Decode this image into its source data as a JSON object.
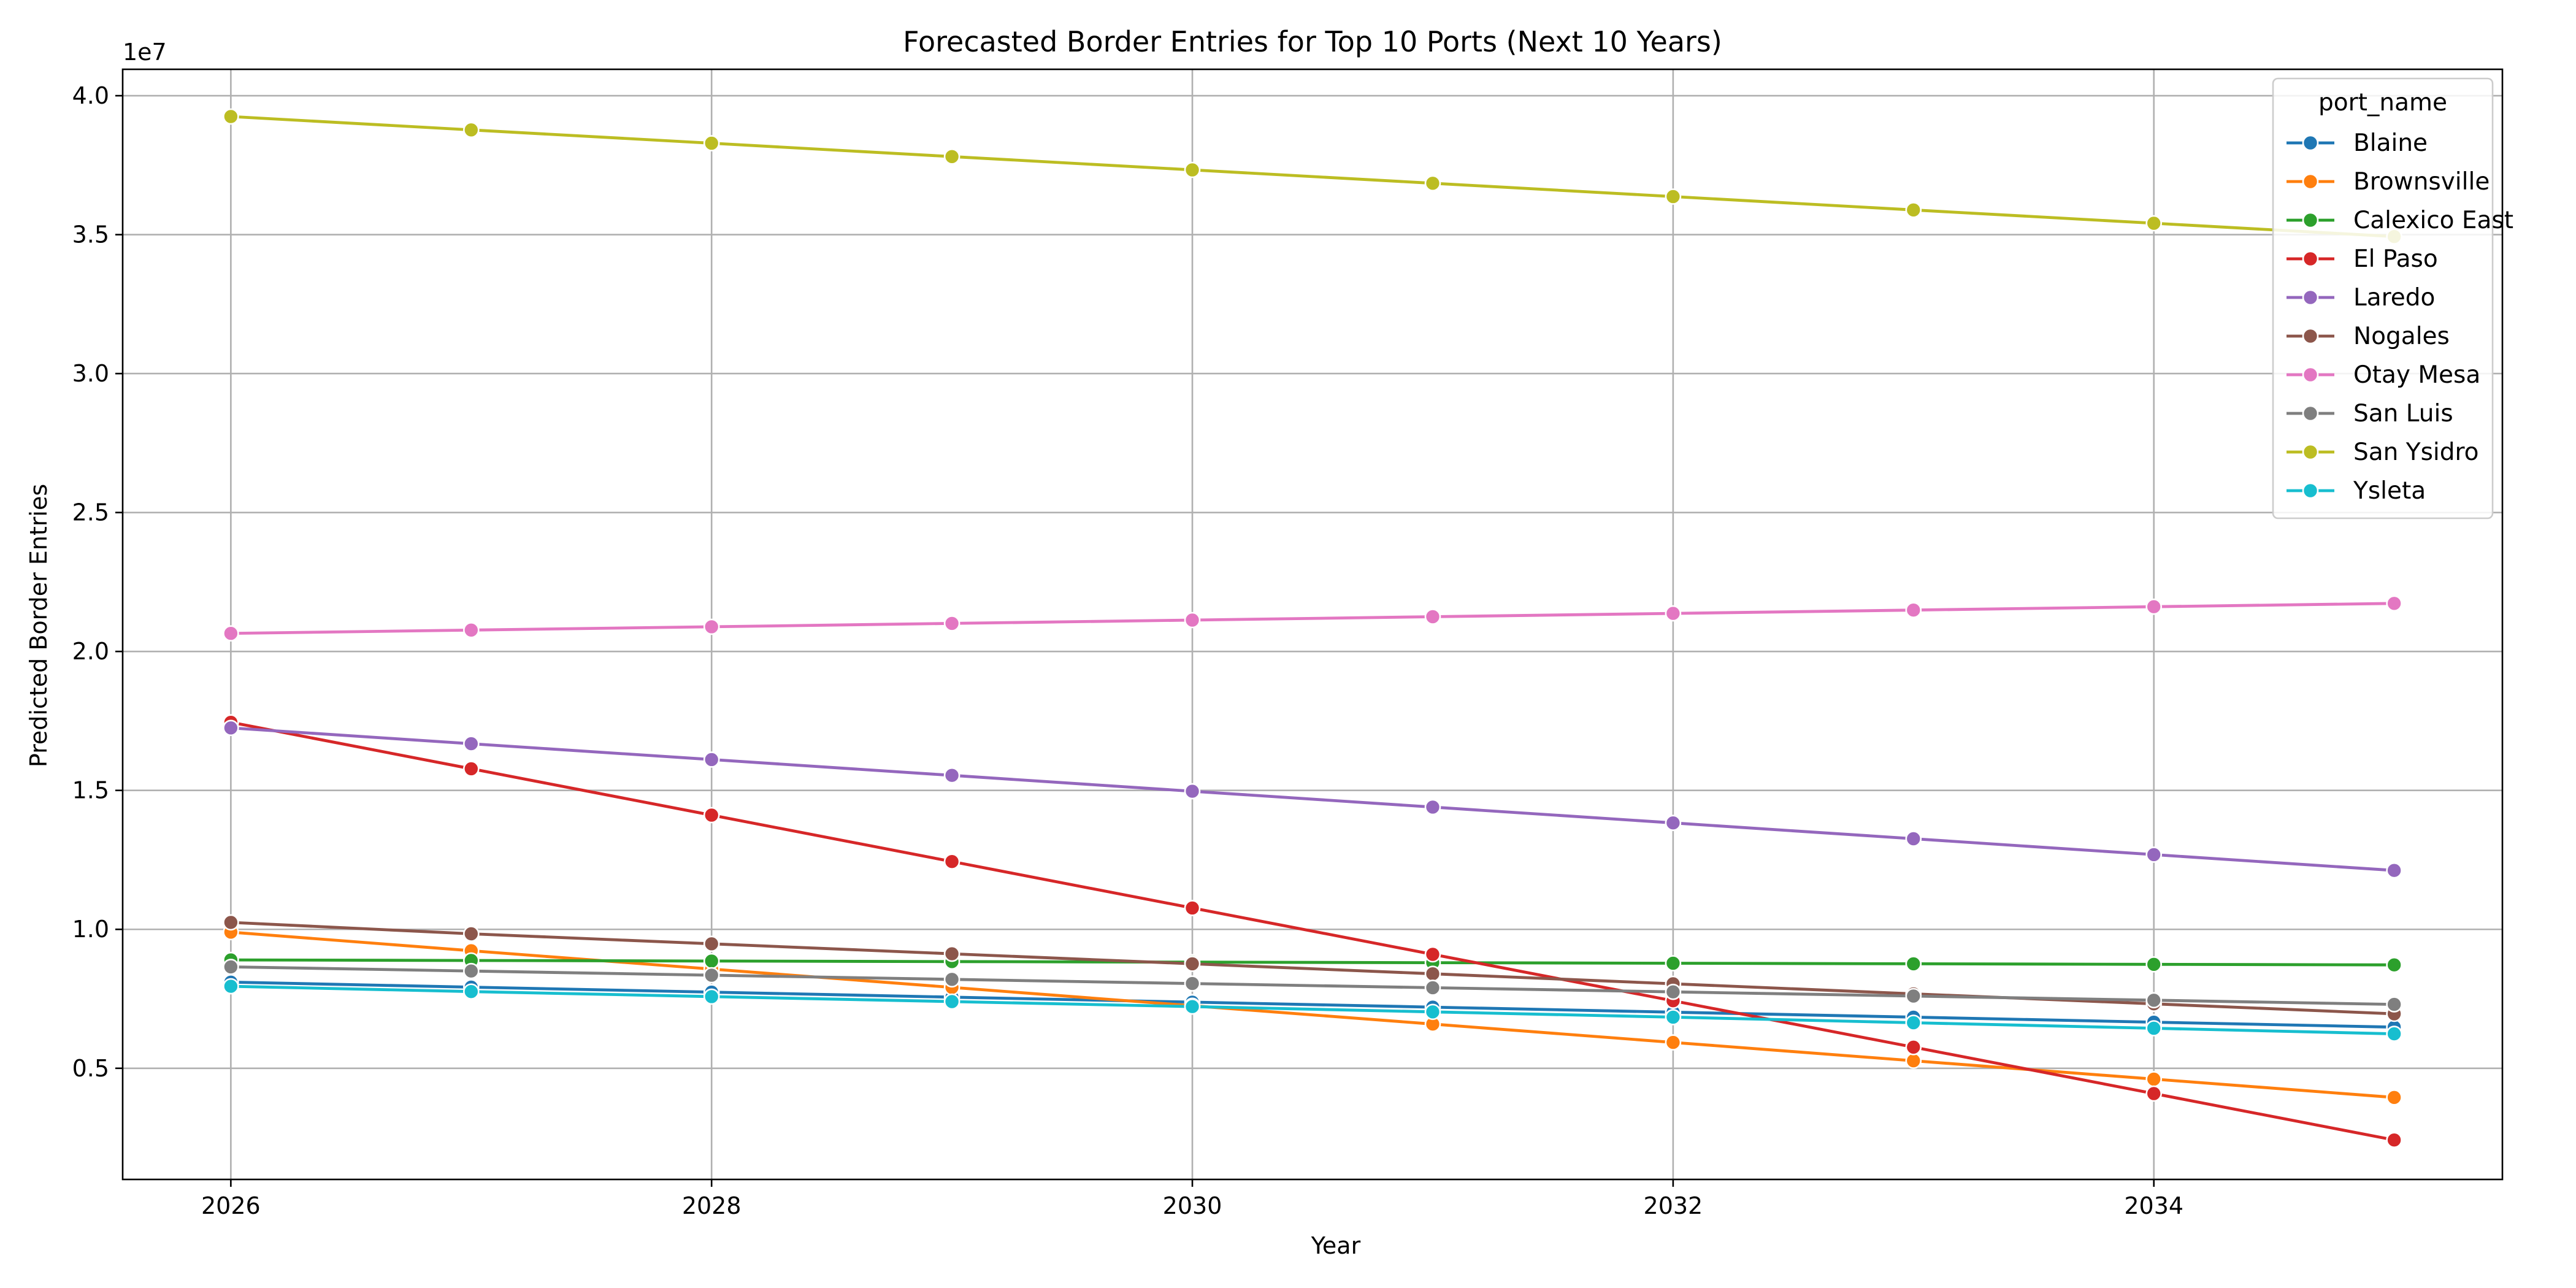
{
  "chart_data": {
    "type": "line",
    "title": "Forecasted Border Entries for Top 10 Ports (Next 10 Years)",
    "xlabel": "Year",
    "ylabel": "Predicted Border Entries",
    "y_offset_label": "1e7",
    "x": [
      2026,
      2027,
      2028,
      2029,
      2030,
      2031,
      2032,
      2033,
      2034,
      2035
    ],
    "xlim": [
      2025.55,
      2035.45
    ],
    "ylim": [
      1000000,
      40950000
    ],
    "x_ticks": [
      {
        "value": 2026,
        "label": "2026"
      },
      {
        "value": 2028,
        "label": "2028"
      },
      {
        "value": 2030,
        "label": "2030"
      },
      {
        "value": 2032,
        "label": "2032"
      },
      {
        "value": 2034,
        "label": "2034"
      }
    ],
    "y_ticks": [
      {
        "value": 5000000,
        "label": "0.5"
      },
      {
        "value": 10000000,
        "label": "1.0"
      },
      {
        "value": 15000000,
        "label": "1.5"
      },
      {
        "value": 20000000,
        "label": "2.0"
      },
      {
        "value": 25000000,
        "label": "2.5"
      },
      {
        "value": 30000000,
        "label": "3.0"
      },
      {
        "value": 35000000,
        "label": "3.5"
      },
      {
        "value": 40000000,
        "label": "4.0"
      }
    ],
    "grid": true,
    "legend": {
      "title": "port_name",
      "placement": "top-right"
    },
    "series": [
      {
        "name": "Blaine",
        "color": "#1f77b4",
        "values": [
          8100000,
          7920000,
          7740000,
          7560000,
          7380000,
          7200000,
          7020000,
          6840000,
          6660000,
          6480000
        ]
      },
      {
        "name": "Brownsville",
        "color": "#ff7f0e",
        "values": [
          9900000,
          9230000,
          8570000,
          7910000,
          7250000,
          6590000,
          5930000,
          5270000,
          4610000,
          3950000
        ]
      },
      {
        "name": "Calexico East",
        "color": "#2ca02c",
        "values": [
          8900000,
          8880000,
          8860000,
          8840000,
          8820000,
          8800000,
          8780000,
          8760000,
          8740000,
          8720000
        ]
      },
      {
        "name": "El Paso",
        "color": "#d62728",
        "values": [
          17450000,
          15780000,
          14110000,
          12440000,
          10770000,
          9100000,
          7430000,
          5760000,
          4090000,
          2420000
        ]
      },
      {
        "name": "Laredo",
        "color": "#9467bd",
        "values": [
          17250000,
          16680000,
          16110000,
          15540000,
          14970000,
          14400000,
          13830000,
          13260000,
          12690000,
          12120000
        ]
      },
      {
        "name": "Nogales",
        "color": "#8c564b",
        "values": [
          10250000,
          9840000,
          9480000,
          9120000,
          8760000,
          8400000,
          8040000,
          7680000,
          7320000,
          6960000
        ]
      },
      {
        "name": "Otay Mesa",
        "color": "#e377c2",
        "values": [
          20650000,
          20770000,
          20890000,
          21010000,
          21130000,
          21250000,
          21370000,
          21490000,
          21610000,
          21730000
        ]
      },
      {
        "name": "San Luis",
        "color": "#7f7f7f",
        "values": [
          8650000,
          8500000,
          8350000,
          8200000,
          8050000,
          7900000,
          7750000,
          7600000,
          7450000,
          7300000
        ]
      },
      {
        "name": "San Ysidro",
        "color": "#bcbd22",
        "values": [
          39250000,
          38770000,
          38290000,
          37810000,
          37330000,
          36850000,
          36370000,
          35890000,
          35410000,
          34930000
        ]
      },
      {
        "name": "Ysleta",
        "color": "#17becf",
        "values": [
          7950000,
          7760000,
          7580000,
          7400000,
          7220000,
          7030000,
          6840000,
          6640000,
          6440000,
          6240000
        ]
      }
    ]
  }
}
